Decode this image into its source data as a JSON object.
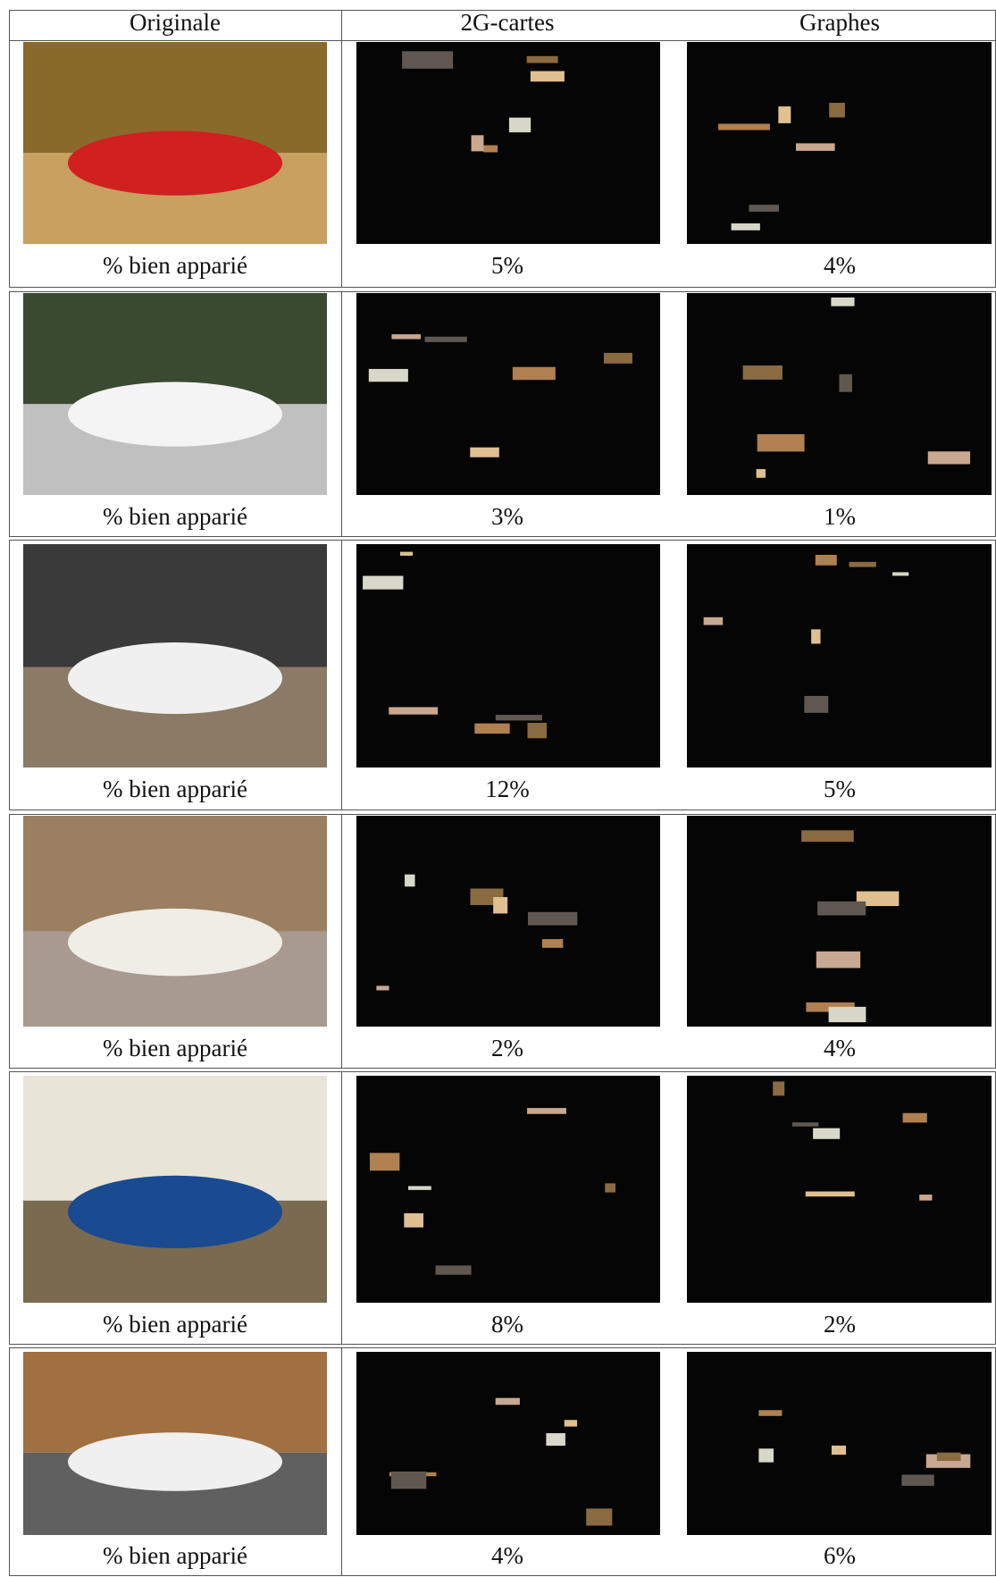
{
  "table": {
    "header": [
      "Originale",
      "2G-cartes",
      "Graphes"
    ],
    "rows": [
      {
        "label": "% bien apparié",
        "cells": [
          "5%",
          "4%"
        ]
      },
      {
        "label": "% bien apparié",
        "cells": [
          "3%",
          "1%"
        ]
      },
      {
        "label": "% bien apparié",
        "cells": [
          "12%",
          "5%"
        ]
      },
      {
        "label": "% bien apparié",
        "cells": [
          "2%",
          "4%"
        ]
      },
      {
        "label": "% bien apparié",
        "cells": [
          "8%",
          "2%"
        ]
      },
      {
        "label": "% bien apparié",
        "cells": [
          "4%",
          "6%"
        ]
      }
    ]
  }
}
